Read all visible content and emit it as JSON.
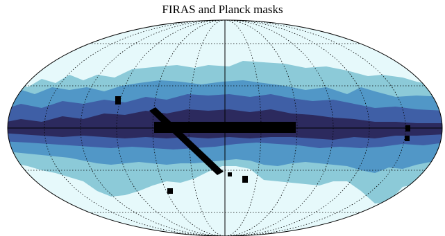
{
  "title": "FIRAS and Planck masks",
  "projection": "mollweide",
  "graticule": {
    "style": "dotted",
    "meridian_step_deg": 30,
    "parallel_step_deg": 30
  },
  "colors": {
    "outline": "#000000",
    "background_sky": "#e6f9fb",
    "band_1": "#8ccad8",
    "band_2": "#5197c7",
    "band_3": "#3f5fa6",
    "band_4": "#2c2a5e",
    "point_sources": "#000000"
  }
}
